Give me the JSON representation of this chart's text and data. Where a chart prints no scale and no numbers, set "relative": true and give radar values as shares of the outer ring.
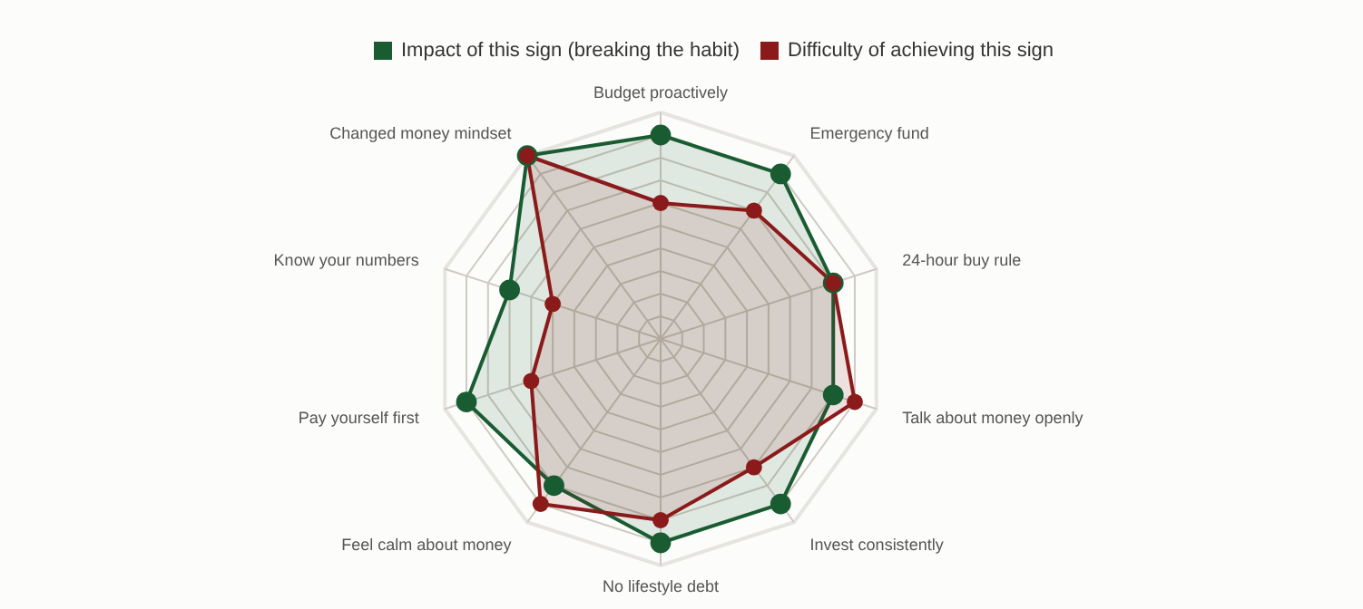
{
  "chart_data": {
    "type": "radar",
    "relative": true,
    "categories": [
      "Budget proactively",
      "Emergency fund",
      "24-hour buy rule",
      "Talk about money openly",
      "Invest consistently",
      "No lifestyle debt",
      "Feel calm about money",
      "Pay yourself first",
      "Know your numbers",
      "Changed money mindset"
    ],
    "series": [
      {
        "name": "Impact of this sign (breaking the habit)",
        "color": "#1a5c32",
        "values": [
          0.9,
          0.9,
          0.8,
          0.8,
          0.9,
          0.9,
          0.8,
          0.9,
          0.7,
          1.0
        ]
      },
      {
        "name": "Difficulty of achieving this sign",
        "color": "#8b1a1a",
        "values": [
          0.6,
          0.7,
          0.8,
          0.9,
          0.7,
          0.8,
          0.9,
          0.6,
          0.5,
          1.0
        ]
      }
    ],
    "legend": "top",
    "marker": "circle",
    "grid": true
  }
}
